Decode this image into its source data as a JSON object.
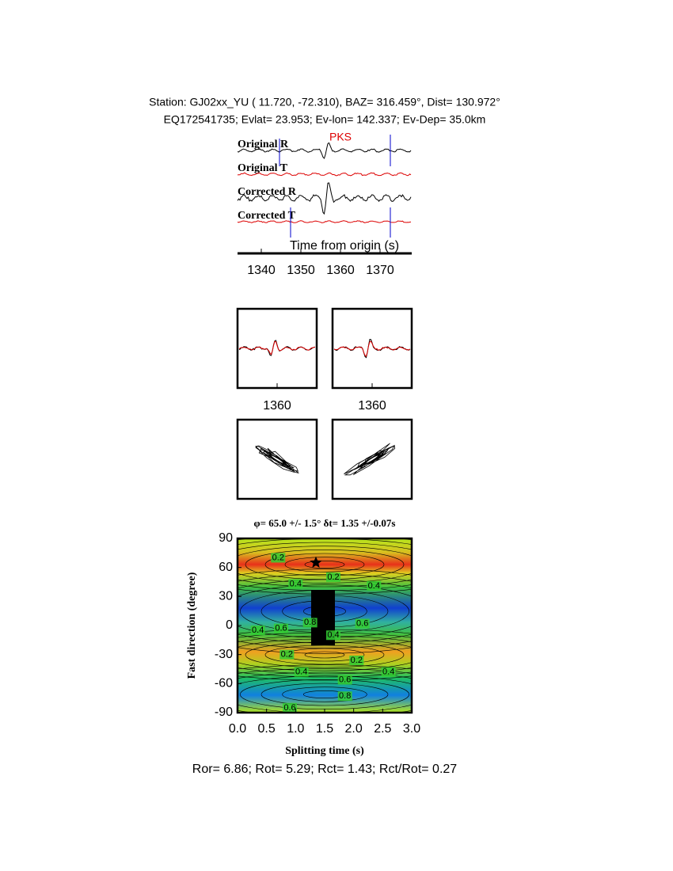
{
  "header": {
    "line1": "Station: GJ02xx_YU (  11.720,  -72.310), BAZ=  316.459°, Dist=  130.972°",
    "line2": "EQ172541735; Evlat=  23.953; Ev-lon= 142.337; Ev-Dep= 35.0km"
  },
  "chart_data": [
    {
      "type": "waveform",
      "phase": "PKS",
      "traces": [
        "Original R",
        "Original T",
        "Corrected R",
        "Corrected T"
      ],
      "xlabel": "Time from origin (s)",
      "xlim": [
        1334,
        1378
      ],
      "xticks": [
        1340,
        1350,
        1360,
        1370
      ]
    },
    {
      "type": "window",
      "xlim": [
        1344,
        1376
      ],
      "xticks": [
        1360
      ]
    },
    {
      "type": "window",
      "xlim": [
        1344,
        1376
      ],
      "xticks": [
        1360
      ]
    },
    {
      "type": "contour",
      "title": "φ= 65.0 +/- 1.5° δt= 1.35 +/-0.07s",
      "xlabel": "Splitting time (s)",
      "ylabel": "Fast direction (degree)",
      "xlim": [
        0,
        3
      ],
      "ylim": [
        -90,
        90
      ],
      "xticks": [
        {
          "value": 0,
          "label": "0.0"
        },
        {
          "value": 0.5,
          "label": "0.5"
        },
        {
          "value": 1,
          "label": "1.0"
        },
        {
          "value": 1.5,
          "label": "1.5"
        },
        {
          "value": 2,
          "label": "2.0"
        },
        {
          "value": 2.5,
          "label": "2.5"
        },
        {
          "value": 3,
          "label": "3.0"
        }
      ],
      "yticks": [
        -90,
        -60,
        -30,
        0,
        30,
        60,
        90
      ],
      "best": {
        "x": 1.35,
        "y": 65
      },
      "contour_labels": [
        {
          "x": 0.7,
          "y": 70,
          "value": 0.2
        },
        {
          "x": 1.65,
          "y": 50,
          "value": 0.2
        },
        {
          "x": 1.0,
          "y": 43,
          "value": 0.4
        },
        {
          "x": 2.35,
          "y": 41,
          "value": 0.4
        },
        {
          "x": 0.35,
          "y": -5,
          "value": 0.4
        },
        {
          "x": 0.75,
          "y": -3,
          "value": 0.6
        },
        {
          "x": 1.25,
          "y": 3,
          "value": 0.8
        },
        {
          "x": 1.65,
          "y": -10,
          "value": 0.4
        },
        {
          "x": 2.15,
          "y": 2,
          "value": 0.6
        },
        {
          "x": 0.85,
          "y": -30,
          "value": 0.2
        },
        {
          "x": 2.05,
          "y": -36,
          "value": 0.2
        },
        {
          "x": 1.1,
          "y": -48,
          "value": 0.4
        },
        {
          "x": 1.85,
          "y": -56,
          "value": 0.6
        },
        {
          "x": 2.6,
          "y": -48,
          "value": 0.4
        },
        {
          "x": 1.85,
          "y": -73,
          "value": 0.8
        },
        {
          "x": 0.9,
          "y": -85,
          "value": 0.6
        }
      ]
    }
  ],
  "footer": "Ror= 6.86; Rot= 5.29; Rct= 1.43; Rct/Rot= 0.27"
}
